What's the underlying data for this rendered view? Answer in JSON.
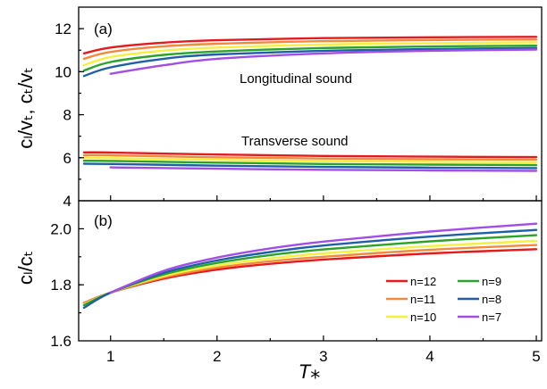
{
  "colors": {
    "n12": "#e41a1c",
    "n11": "#f4893c",
    "n10": "#f5ef3e",
    "n9": "#2aa32a",
    "n8": "#1f5fa8",
    "n7": "#a24ee6"
  },
  "chart_data": [
    {
      "type": "line",
      "panel": "(a)",
      "ylabel": "cₗ/vₜ, cₜ/vₜ",
      "xlim": [
        0.7,
        5.05
      ],
      "ylim": [
        4,
        13
      ],
      "yticks": [
        "4",
        "6",
        "8",
        "10",
        "12"
      ],
      "annotations": [
        "Longitudinal sound",
        "Transverse sound"
      ],
      "series": [
        {
          "name": "n=12",
          "color_key": "n12",
          "group": "longitudinal",
          "x": [
            0.75,
            1,
            1.5,
            2,
            3,
            4,
            5
          ],
          "y": [
            10.85,
            11.12,
            11.35,
            11.46,
            11.56,
            11.6,
            11.62
          ]
        },
        {
          "name": "n=11",
          "color_key": "n11",
          "group": "longitudinal",
          "x": [
            0.75,
            1,
            1.5,
            2,
            3,
            4,
            5
          ],
          "y": [
            10.6,
            10.92,
            11.18,
            11.3,
            11.42,
            11.47,
            11.5
          ]
        },
        {
          "name": "n=10",
          "color_key": "n10",
          "group": "longitudinal",
          "x": [
            0.75,
            1,
            1.5,
            2,
            3,
            4,
            5
          ],
          "y": [
            10.3,
            10.68,
            10.98,
            11.12,
            11.26,
            11.32,
            11.36
          ]
        },
        {
          "name": "n=9",
          "color_key": "n9",
          "group": "longitudinal",
          "x": [
            0.75,
            1,
            1.5,
            2,
            3,
            4,
            5
          ],
          "y": [
            10.05,
            10.45,
            10.78,
            10.94,
            11.1,
            11.17,
            11.21
          ]
        },
        {
          "name": "n=8",
          "color_key": "n8",
          "group": "longitudinal",
          "x": [
            0.75,
            1,
            1.5,
            2,
            3,
            4,
            5
          ],
          "y": [
            9.8,
            10.2,
            10.6,
            10.8,
            10.97,
            11.05,
            11.1
          ]
        },
        {
          "name": "n=7",
          "color_key": "n7",
          "group": "longitudinal",
          "x": [
            1,
            1.5,
            2,
            3,
            4,
            5
          ],
          "y": [
            9.9,
            10.3,
            10.6,
            10.85,
            10.97,
            11.03
          ]
        },
        {
          "name": "n=12",
          "color_key": "n12",
          "group": "transverse",
          "x": [
            0.75,
            1,
            2,
            3,
            4,
            5
          ],
          "y": [
            6.25,
            6.24,
            6.15,
            6.08,
            6.05,
            6.03
          ]
        },
        {
          "name": "n=11",
          "color_key": "n11",
          "group": "transverse",
          "x": [
            0.75,
            1,
            2,
            3,
            4,
            5
          ],
          "y": [
            6.12,
            6.11,
            6.02,
            5.96,
            5.93,
            5.91
          ]
        },
        {
          "name": "n=10",
          "color_key": "n10",
          "group": "transverse",
          "x": [
            0.75,
            1,
            2,
            3,
            4,
            5
          ],
          "y": [
            5.99,
            5.98,
            5.9,
            5.84,
            5.81,
            5.79
          ]
        },
        {
          "name": "n=9",
          "color_key": "n9",
          "group": "transverse",
          "x": [
            0.75,
            1,
            2,
            3,
            4,
            5
          ],
          "y": [
            5.86,
            5.85,
            5.77,
            5.71,
            5.68,
            5.66
          ]
        },
        {
          "name": "n=8",
          "color_key": "n8",
          "group": "transverse",
          "x": [
            0.75,
            1,
            2,
            3,
            4,
            5
          ],
          "y": [
            5.72,
            5.71,
            5.63,
            5.57,
            5.54,
            5.52
          ]
        },
        {
          "name": "n=7",
          "color_key": "n7",
          "group": "transverse",
          "x": [
            1,
            2,
            3,
            4,
            5
          ],
          "y": [
            5.55,
            5.49,
            5.44,
            5.41,
            5.39
          ]
        }
      ]
    },
    {
      "type": "line",
      "panel": "(b)",
      "ylabel": "cₗ/cₜ",
      "xlabel": "T⁎",
      "xlim": [
        0.7,
        5.05
      ],
      "ylim": [
        1.6,
        2.1
      ],
      "xticks": [
        "1",
        "2",
        "3",
        "4",
        "5"
      ],
      "yticks": [
        "1.6",
        "1.8",
        "2.0"
      ],
      "legend": {
        "position": "bottom-right",
        "columns": 2
      },
      "series": [
        {
          "name": "n=12",
          "color_key": "n12",
          "x": [
            0.75,
            1,
            1.5,
            2,
            2.5,
            3,
            4,
            5
          ],
          "y": [
            1.735,
            1.772,
            1.822,
            1.854,
            1.875,
            1.89,
            1.912,
            1.927
          ]
        },
        {
          "name": "n=11",
          "color_key": "n11",
          "x": [
            0.75,
            1,
            1.5,
            2,
            2.5,
            3,
            4,
            5
          ],
          "y": [
            1.733,
            1.772,
            1.826,
            1.861,
            1.884,
            1.9,
            1.925,
            1.942
          ]
        },
        {
          "name": "n=10",
          "color_key": "n10",
          "x": [
            0.75,
            1,
            1.5,
            2,
            2.5,
            3,
            4,
            5
          ],
          "y": [
            1.731,
            1.772,
            1.831,
            1.869,
            1.894,
            1.912,
            1.938,
            1.957
          ]
        },
        {
          "name": "n=9",
          "color_key": "n9",
          "x": [
            0.75,
            1,
            1.5,
            2,
            2.5,
            3,
            4,
            5
          ],
          "y": [
            1.727,
            1.772,
            1.837,
            1.878,
            1.906,
            1.926,
            1.955,
            1.977
          ]
        },
        {
          "name": "n=8",
          "color_key": "n8",
          "x": [
            0.75,
            1,
            1.5,
            2,
            2.5,
            3,
            4,
            5
          ],
          "y": [
            1.718,
            1.772,
            1.843,
            1.887,
            1.917,
            1.94,
            1.972,
            1.996
          ]
        },
        {
          "name": "n=7",
          "color_key": "n7",
          "x": [
            1,
            1.5,
            2,
            2.5,
            3,
            4,
            5
          ],
          "y": [
            1.772,
            1.85,
            1.897,
            1.93,
            1.954,
            1.99,
            2.018
          ]
        }
      ]
    }
  ],
  "legend": [
    {
      "label": "n=12",
      "color_key": "n12"
    },
    {
      "label": "n=9",
      "color_key": "n9"
    },
    {
      "label": "n=11",
      "color_key": "n11"
    },
    {
      "label": "n=8",
      "color_key": "n8"
    },
    {
      "label": "n=10",
      "color_key": "n10"
    },
    {
      "label": "n=7",
      "color_key": "n7"
    }
  ]
}
